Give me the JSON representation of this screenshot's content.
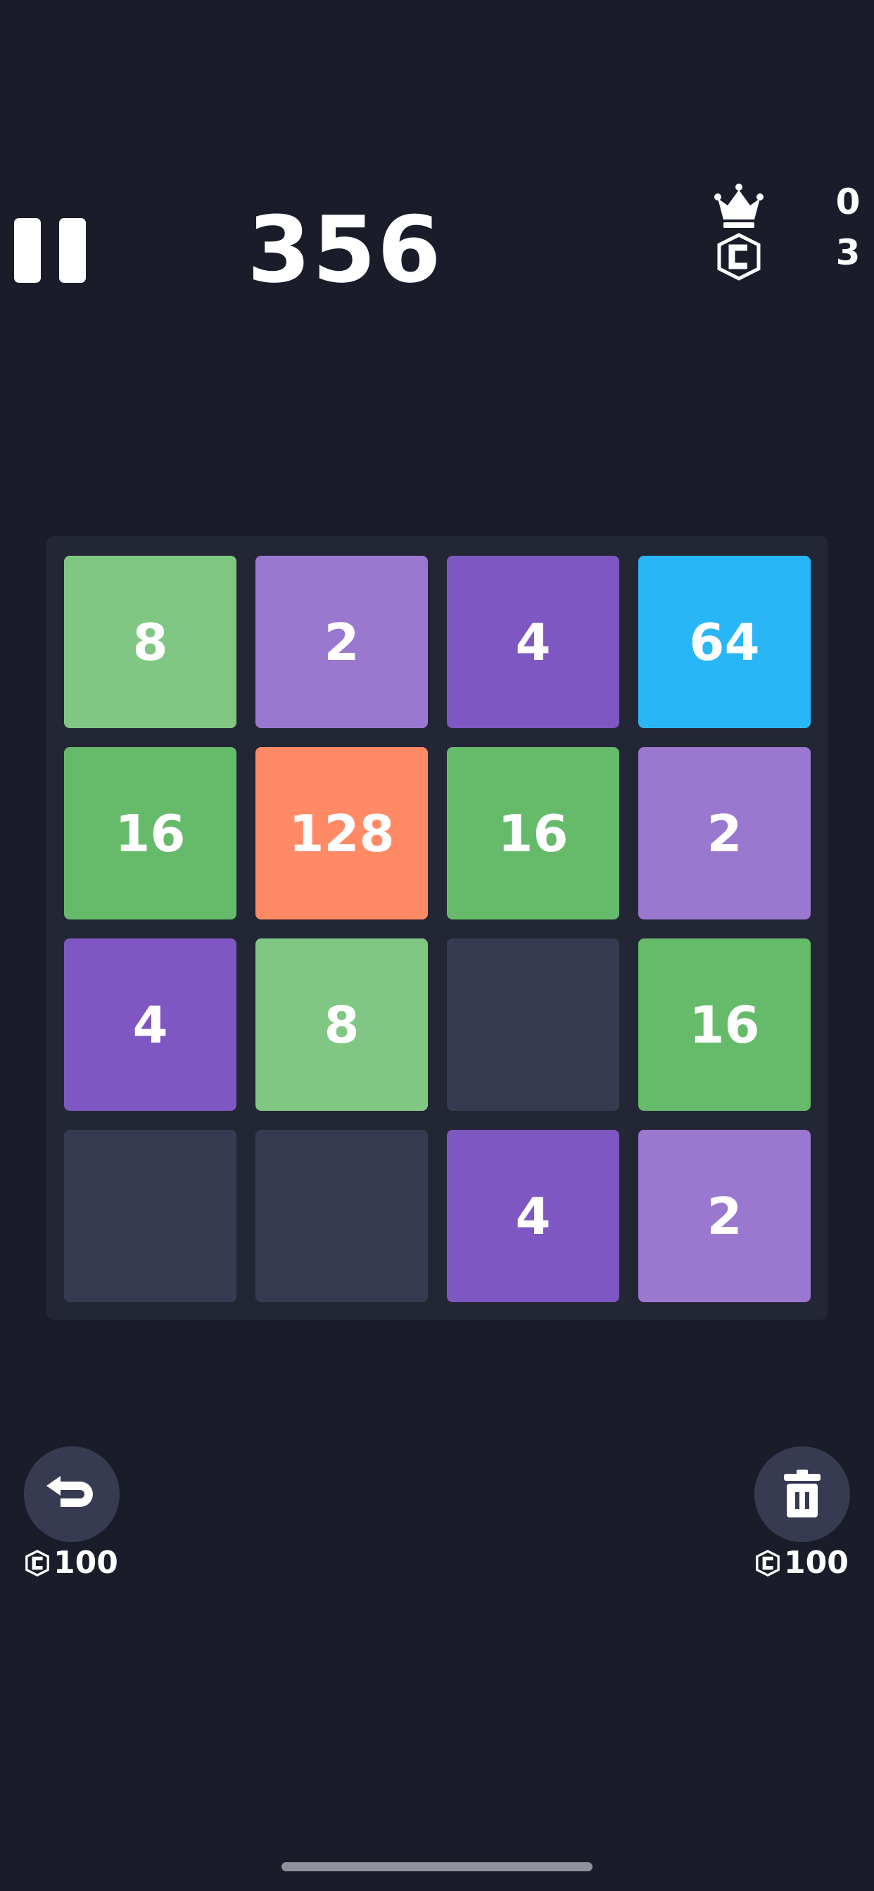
{
  "header": {
    "score": "356",
    "best_score": "0",
    "coins": "3",
    "pause_icon": "pause-icon",
    "best_icon": "crown-icon",
    "coin_icon": "coin-icon"
  },
  "board": {
    "rows": [
      [
        8,
        2,
        4,
        64
      ],
      [
        16,
        128,
        16,
        2
      ],
      [
        4,
        8,
        null,
        16
      ],
      [
        null,
        null,
        4,
        2
      ]
    ],
    "tile_colors": {
      "empty": "#363b52",
      "2": "#9b78d0",
      "4": "#7e57c2",
      "8": "#81c784",
      "16": "#66bb6a",
      "64": "#29b6f6",
      "128": "#ff8a65"
    }
  },
  "powerups": {
    "undo": {
      "icon": "undo-icon",
      "cost": "100"
    },
    "delete": {
      "icon": "trash-icon",
      "cost": "100"
    }
  },
  "colors": {
    "background": "#1a1d29",
    "board": "#232634",
    "button": "#363b52"
  }
}
